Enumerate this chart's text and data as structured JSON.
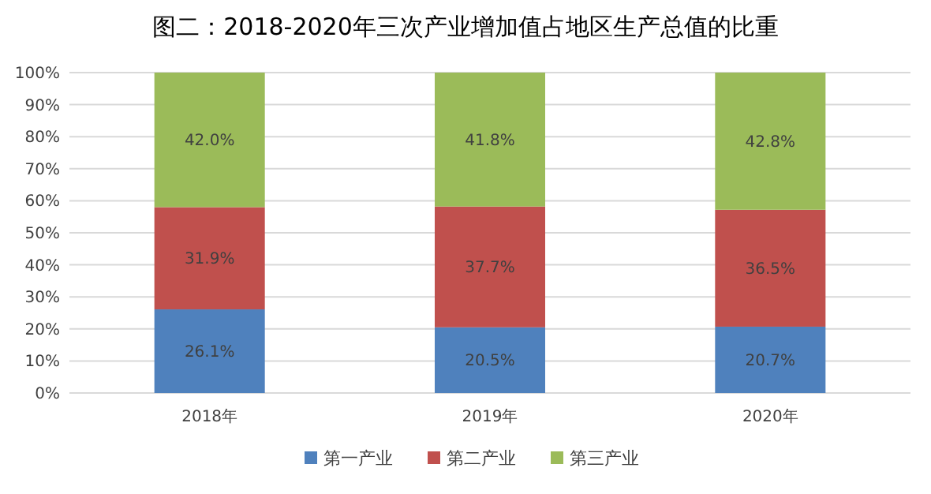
{
  "chart_data": {
    "type": "bar",
    "title": "图二：2018-2020年三次产业增加值占地区生产总值的比重",
    "categories": [
      "2018年",
      "2019年",
      "2020年"
    ],
    "stacked": true,
    "series": [
      {
        "name": "第一产业",
        "color": "#4f81bd",
        "values": [
          26.1,
          20.5,
          20.7
        ],
        "value_labels": [
          "26.1%",
          "20.5%",
          "20.7%"
        ]
      },
      {
        "name": "第二产业",
        "color": "#c0504d",
        "values": [
          31.9,
          37.7,
          36.5
        ],
        "value_labels": [
          "31.9%",
          "37.7%",
          "36.5%"
        ]
      },
      {
        "name": "第三产业",
        "color": "#9bbb59",
        "values": [
          42.0,
          41.8,
          42.8
        ],
        "value_labels": [
          "42.0%",
          "41.8%",
          "42.8%"
        ]
      }
    ],
    "ylim": [
      0,
      100
    ],
    "yticks": [
      {
        "value": 0,
        "label": "0%"
      },
      {
        "value": 10,
        "label": "10%"
      },
      {
        "value": 20,
        "label": "20%"
      },
      {
        "value": 30,
        "label": "30%"
      },
      {
        "value": 40,
        "label": "40%"
      },
      {
        "value": 50,
        "label": "50%"
      },
      {
        "value": 60,
        "label": "60%"
      },
      {
        "value": 70,
        "label": "70%"
      },
      {
        "value": 80,
        "label": "80%"
      },
      {
        "value": 90,
        "label": "90%"
      },
      {
        "value": 100,
        "label": "100%"
      }
    ],
    "grid": "y",
    "legend": "bottom"
  }
}
